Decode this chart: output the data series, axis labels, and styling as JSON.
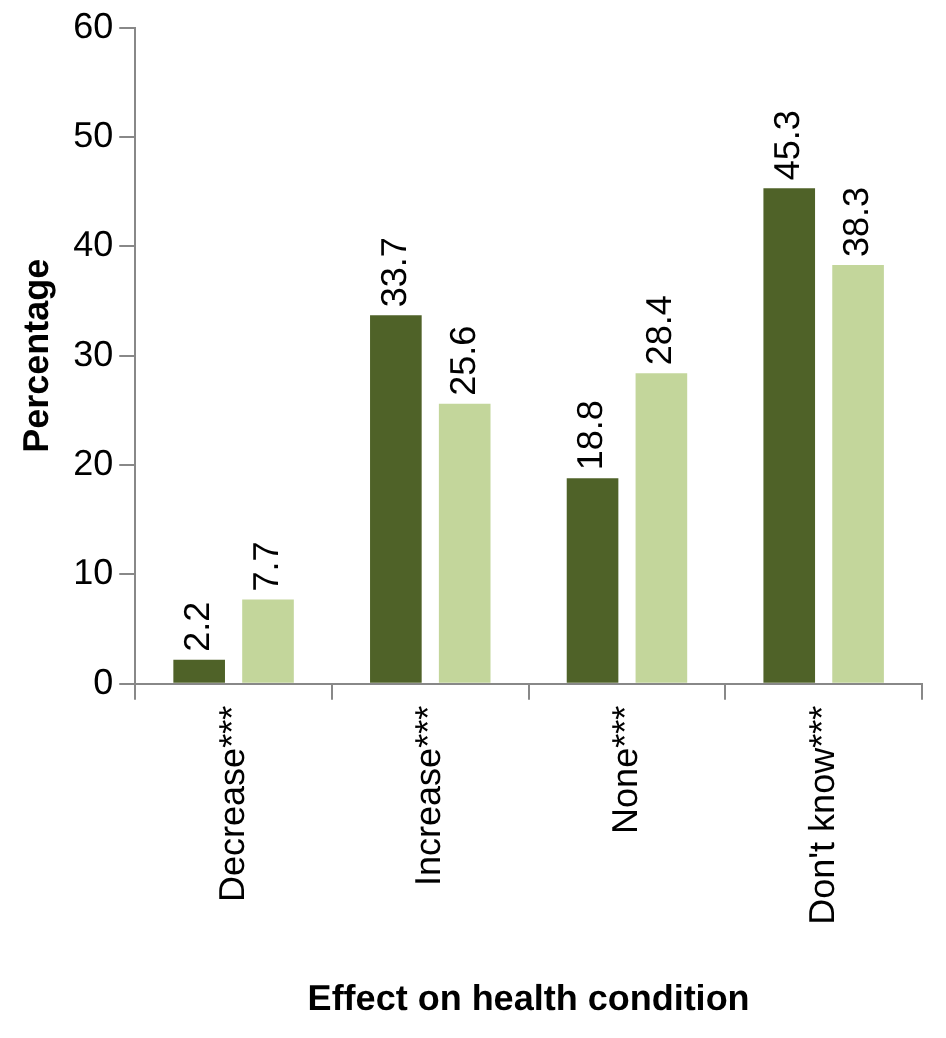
{
  "chart_data": {
    "type": "bar",
    "xlabel": "Effect on health condition",
    "ylabel": "Percentage",
    "categories": [
      "Decrease***",
      "Increase***",
      "None***",
      "Don't know***"
    ],
    "series": [
      {
        "color": "#4f6228",
        "values": [
          2.2,
          33.7,
          18.8,
          45.3
        ]
      },
      {
        "color": "#c3d69b",
        "values": [
          7.7,
          25.6,
          28.4,
          38.3
        ]
      }
    ],
    "ylim": [
      0,
      60
    ],
    "yticks": [
      0,
      10,
      20,
      30,
      40,
      50,
      60
    ],
    "grid": false,
    "legend": false,
    "data_labels": true
  }
}
